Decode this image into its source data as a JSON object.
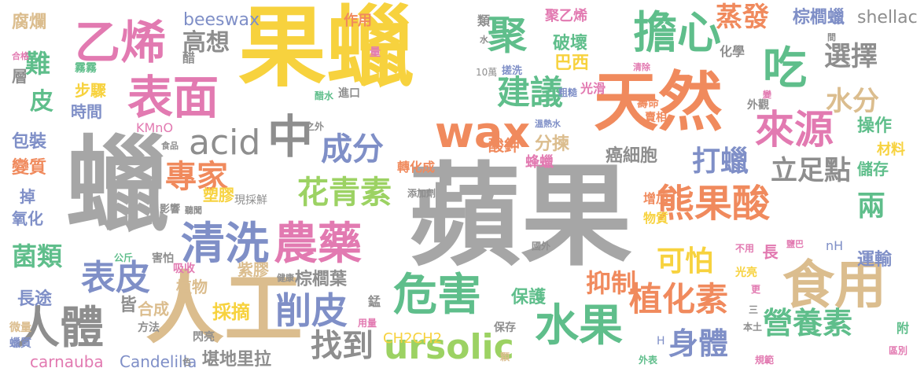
{
  "palette": {
    "gray": "#a6a6a6",
    "yellow": "#f7d23e",
    "tan": "#dbbd8e",
    "orange": "#f08a5d",
    "blue": "#7f8fc7",
    "green": "#5fbe8b",
    "pink": "#e27ab1",
    "lime": "#9cd263",
    "darkgray": "#8e8e8e"
  },
  "words": [
    {
      "text": "蘋果",
      "color": "gray"
    },
    {
      "text": "果蠟",
      "color": "yellow"
    },
    {
      "text": "蠟",
      "color": "gray"
    },
    {
      "text": "人工",
      "color": "tan"
    },
    {
      "text": "天然",
      "color": "orange"
    },
    {
      "text": "食用",
      "color": "tan"
    },
    {
      "text": "表面",
      "color": "pink"
    },
    {
      "text": "乙烯",
      "color": "pink"
    },
    {
      "text": "聚",
      "color": "green"
    },
    {
      "text": "擔心",
      "color": "green"
    },
    {
      "text": "吃",
      "color": "green"
    },
    {
      "text": "wax",
      "color": "orange"
    },
    {
      "text": "農藥",
      "color": "pink"
    },
    {
      "text": "清洗",
      "color": "blue"
    },
    {
      "text": "危害",
      "color": "green"
    },
    {
      "text": "水果",
      "color": "green"
    },
    {
      "text": "人體",
      "color": "darkgray"
    },
    {
      "text": "削皮",
      "color": "blue"
    },
    {
      "text": "熊果酸",
      "color": "orange"
    },
    {
      "text": "植化素",
      "color": "orange"
    },
    {
      "text": "來源",
      "color": "pink"
    },
    {
      "text": "建議",
      "color": "green"
    },
    {
      "text": "ursolic",
      "color": "lime"
    },
    {
      "text": "acid",
      "color": "darkgray"
    },
    {
      "text": "中",
      "color": "darkgray"
    },
    {
      "text": "成分",
      "color": "blue"
    },
    {
      "text": "專家",
      "color": "orange"
    },
    {
      "text": "花青素",
      "color": "lime"
    },
    {
      "text": "表皮",
      "color": "blue"
    },
    {
      "text": "營養素",
      "color": "green"
    },
    {
      "text": "身體",
      "color": "blue"
    },
    {
      "text": "找到",
      "color": "darkgray"
    },
    {
      "text": "可怕",
      "color": "yellow"
    },
    {
      "text": "抑制",
      "color": "orange"
    },
    {
      "text": "打蠟",
      "color": "blue"
    },
    {
      "text": "蒸發",
      "color": "orange"
    },
    {
      "text": "選擇",
      "color": "darkgray"
    },
    {
      "text": "水分",
      "color": "tan"
    },
    {
      "text": "立足點",
      "color": "darkgray"
    },
    {
      "text": "兩",
      "color": "green"
    },
    {
      "text": "難",
      "color": "green"
    },
    {
      "text": "皮",
      "color": "green"
    },
    {
      "text": "菌類",
      "color": "green"
    },
    {
      "text": "皆",
      "color": "darkgray"
    },
    {
      "text": "高想",
      "color": "darkgray"
    },
    {
      "text": "腐爛",
      "color": "tan"
    },
    {
      "text": "beeswax",
      "color": "blue"
    },
    {
      "text": "shellac",
      "color": "darkgray"
    },
    {
      "text": "棕櫚蠟",
      "color": "blue"
    },
    {
      "text": "carnauba",
      "color": "pink"
    },
    {
      "text": "Candelilla",
      "color": "blue"
    },
    {
      "text": "堪地里拉",
      "color": "darkgray"
    },
    {
      "text": "CH2CH2",
      "color": "yellow"
    },
    {
      "text": "棕櫚葉",
      "color": "darkgray"
    },
    {
      "text": "紫膠",
      "color": "tan"
    },
    {
      "text": "採摘",
      "color": "yellow"
    },
    {
      "text": "植物",
      "color": "tan"
    },
    {
      "text": "合成",
      "color": "tan"
    },
    {
      "text": "長途",
      "color": "blue"
    },
    {
      "text": "運輸",
      "color": "blue"
    },
    {
      "text": "保護",
      "color": "green"
    },
    {
      "text": "癌細胞",
      "color": "darkgray"
    },
    {
      "text": "分揀",
      "color": "tan"
    },
    {
      "text": "酸鉀",
      "color": "orange"
    },
    {
      "text": "操作",
      "color": "green"
    },
    {
      "text": "儲存",
      "color": "green"
    },
    {
      "text": "材料",
      "color": "yellow"
    },
    {
      "text": "破壞",
      "color": "green"
    },
    {
      "text": "巴西",
      "color": "yellow"
    },
    {
      "text": "步驟",
      "color": "yellow"
    },
    {
      "text": "時間",
      "color": "blue"
    },
    {
      "text": "包裝",
      "color": "blue"
    },
    {
      "text": "變質",
      "color": "orange"
    },
    {
      "text": "掉",
      "color": "blue"
    },
    {
      "text": "氧化",
      "color": "blue"
    },
    {
      "text": "層",
      "color": "darkgray"
    },
    {
      "text": "醋",
      "color": "darkgray"
    },
    {
      "text": "作用",
      "color": "orange"
    },
    {
      "text": "聚乙烯",
      "color": "pink"
    },
    {
      "text": "類",
      "color": "darkgray"
    },
    {
      "text": "化學",
      "color": "darkgray"
    },
    {
      "text": "轉化成",
      "color": "orange"
    },
    {
      "text": "蜂蠟",
      "color": "pink"
    },
    {
      "text": "塑膠",
      "color": "yellow"
    },
    {
      "text": "現採鮮",
      "color": "darkgray"
    },
    {
      "text": "KMnO",
      "color": "pink"
    },
    {
      "text": "nH",
      "color": "blue"
    },
    {
      "text": "長",
      "color": "pink"
    },
    {
      "text": "光亮",
      "color": "yellow"
    },
    {
      "text": "光滑",
      "color": "pink"
    },
    {
      "text": "壽命",
      "color": "orange"
    },
    {
      "text": "賣相",
      "color": "orange"
    },
    {
      "text": "外觀",
      "color": "darkgray"
    },
    {
      "text": "增加",
      "color": "orange"
    },
    {
      "text": "物質",
      "color": "yellow"
    },
    {
      "text": "保存",
      "color": "darkgray"
    },
    {
      "text": "錳",
      "color": "darkgray"
    },
    {
      "text": "用量",
      "color": "pink"
    },
    {
      "text": "閃亮",
      "color": "darkgray"
    },
    {
      "text": "方法",
      "color": "darkgray"
    },
    {
      "text": "微量",
      "color": "tan"
    },
    {
      "text": "蠟質",
      "color": "blue"
    },
    {
      "text": "吸收",
      "color": "pink"
    },
    {
      "text": "害怕",
      "color": "darkgray"
    },
    {
      "text": "公斤",
      "color": "green"
    },
    {
      "text": "健康",
      "color": "darkgray"
    },
    {
      "text": "影響",
      "color": "darkgray"
    },
    {
      "text": "聽聞",
      "color": "darkgray"
    },
    {
      "text": "添加劑",
      "color": "darkgray"
    },
    {
      "text": "食品",
      "color": "darkgray"
    },
    {
      "text": "之外",
      "color": "darkgray"
    },
    {
      "text": "溫熱水",
      "color": "blue"
    },
    {
      "text": "粗糙",
      "color": "blue"
    },
    {
      "text": "進口",
      "color": "darkgray"
    },
    {
      "text": "醋水",
      "color": "green"
    },
    {
      "text": "搓洗",
      "color": "blue"
    },
    {
      "text": "10萬",
      "color": "darkgray"
    },
    {
      "text": "清除",
      "color": "pink"
    },
    {
      "text": "霧霧",
      "color": "green"
    },
    {
      "text": "合格",
      "color": "pink"
    },
    {
      "text": "國外",
      "color": "darkgray"
    },
    {
      "text": "本土",
      "color": "darkgray"
    },
    {
      "text": "附",
      "color": "green"
    },
    {
      "text": "區別",
      "color": "pink"
    },
    {
      "text": "規範",
      "color": "pink"
    },
    {
      "text": "外表",
      "color": "green"
    },
    {
      "text": "顆",
      "color": "tan"
    },
    {
      "text": "色",
      "color": "darkgray"
    },
    {
      "text": "不用",
      "color": "pink"
    },
    {
      "text": "鹽巴",
      "color": "pink"
    },
    {
      "text": "更",
      "color": "pink"
    },
    {
      "text": "三",
      "color": "darkgray"
    },
    {
      "text": "H",
      "color": "blue"
    },
    {
      "text": "量",
      "color": "pink"
    },
    {
      "text": "水",
      "color": "darkgray"
    },
    {
      "text": "間",
      "color": "darkgray"
    },
    {
      "text": "變",
      "color": "pink"
    }
  ]
}
